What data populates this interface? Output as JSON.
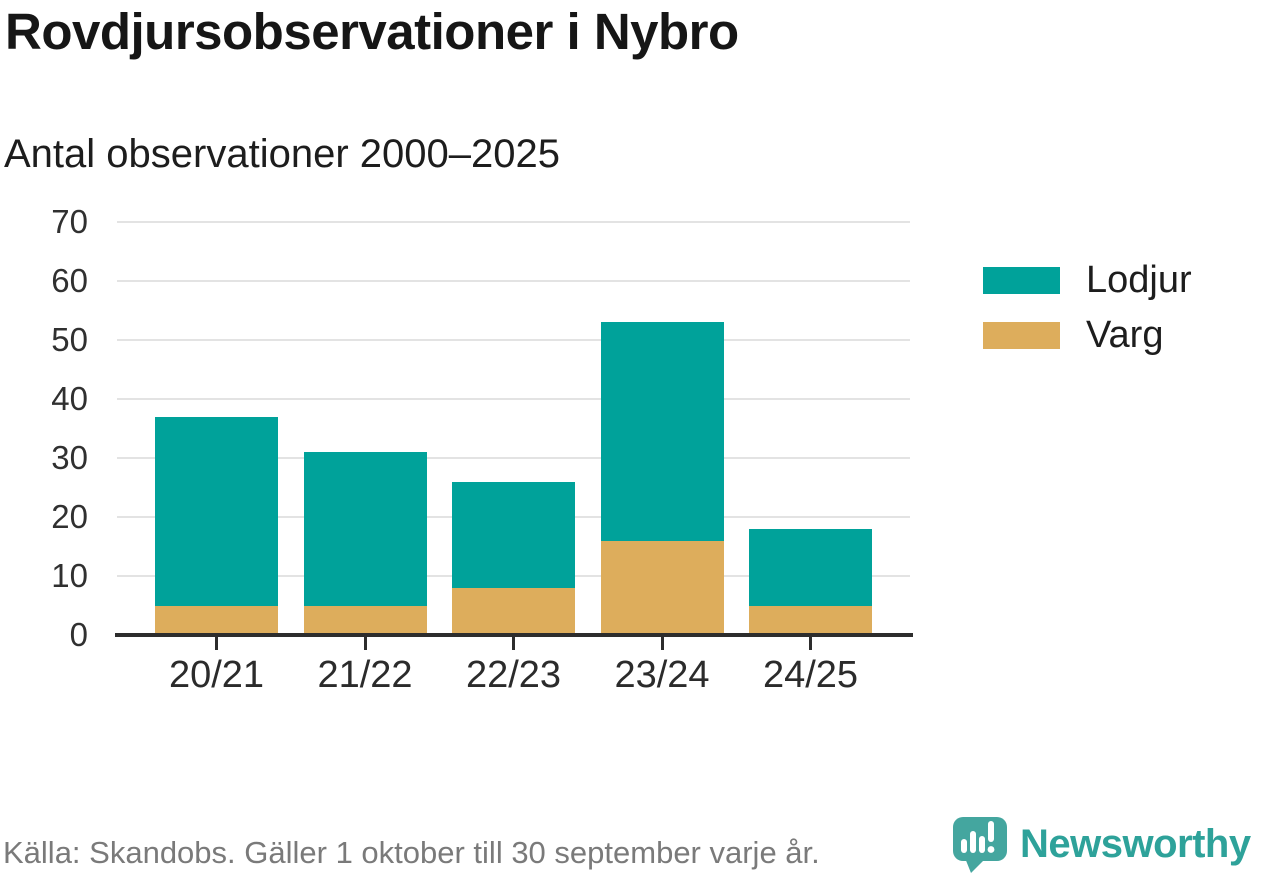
{
  "header": {
    "title": "Rovdjursobservationer i Nybro",
    "subtitle": "Antal observationer 2000–2025"
  },
  "chart_data": {
    "type": "bar",
    "stacked": true,
    "title": "Rovdjursobservationer i Nybro",
    "subtitle": "Antal observationer 2000–2025",
    "categories": [
      "20/21",
      "21/22",
      "22/23",
      "23/24",
      "24/25"
    ],
    "series": [
      {
        "name": "Varg",
        "color": "#ddad5c",
        "values": [
          5,
          5,
          8,
          16,
          5
        ]
      },
      {
        "name": "Lodjur",
        "color": "#00a29a",
        "values": [
          32,
          26,
          18,
          37,
          13
        ]
      }
    ],
    "stacked_totals": [
      37,
      31,
      26,
      53,
      18
    ],
    "xlabel": "",
    "ylabel": "",
    "ylim": [
      0,
      70
    ],
    "yticks": [
      0,
      10,
      20,
      30,
      40,
      50,
      60,
      70
    ],
    "grid": true,
    "legend_position": "right-top"
  },
  "legend": {
    "items": [
      {
        "label": "Lodjur",
        "color": "#00a29a"
      },
      {
        "label": "Varg",
        "color": "#ddad5c"
      }
    ]
  },
  "footer": {
    "source": "Källa: Skandobs. Gäller 1 oktober till 30 september varje år.",
    "brand": "Newsworthy"
  },
  "colors": {
    "lodjur": "#00a29a",
    "varg": "#ddad5c",
    "logo_bubble": "#44a69f",
    "wordmark": "#2ea29a",
    "axis_text": "#303030",
    "gridline": "#e3e3e3",
    "axis_line": "#2d2d2d",
    "source_text": "#7a7a7a",
    "title_text": "#161616"
  }
}
